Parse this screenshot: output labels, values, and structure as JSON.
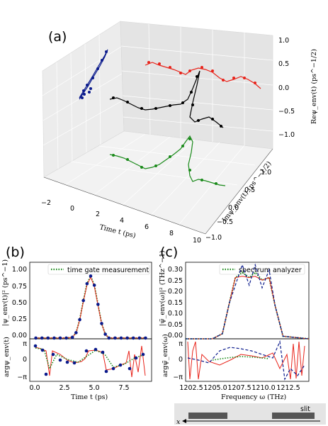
{
  "panels": {
    "a": {
      "label": "(a)",
      "x_axis_label": "Time t (ps)",
      "x_ticks": [
        "−2",
        "0",
        "2",
        "4",
        "6",
        "8",
        "10"
      ],
      "y_axis_label": "Imψ_env(t) (ps^−1/2)",
      "y_ticks": [
        "−1.0",
        "−0.5",
        "0.0",
        "0.5",
        "1.0"
      ],
      "z_axis_label": "Reψ_env(t) (ps^−1/2)",
      "z_ticks": [
        "1.0",
        "0.5",
        "0.0",
        "−0.5",
        "−1.0"
      ],
      "colors": {
        "blue": "#0a1a8c",
        "red": "#e8231a",
        "black": "#000000",
        "green": "#1a8a1a"
      }
    },
    "b": {
      "label": "(b)",
      "legend": "time gate measurement",
      "top_ylabel": "|ψ_env(t)|² (ps^−1)",
      "top_yticks": [
        "0.00",
        "0.25",
        "0.50",
        "0.75",
        "1.00"
      ],
      "bottom_ylabel": "argψ_env(t)",
      "bottom_yticks": [
        "π",
        "0",
        "−π"
      ],
      "xlabel": "Time t (ps)",
      "xticks": [
        "0.0",
        "2.5",
        "5.0",
        "7.5"
      ]
    },
    "c": {
      "label": "(c)",
      "legend": "spectrum analyzer",
      "top_ylabel": "|ψ̃_env(ω)|² (THz^−1)",
      "top_yticks": [
        "0.00",
        "0.05",
        "0.10",
        "0.15",
        "0.20",
        "0.25",
        "0.30"
      ],
      "bottom_ylabel": "argψ̃_env(ω)",
      "bottom_yticks": [
        "π",
        "0",
        "−π"
      ],
      "xlabel": "Frequency ω (THz)",
      "xticks": [
        "1202.5",
        "1205.0",
        "1207.5",
        "1210.0",
        "1212.5"
      ]
    },
    "d": {
      "slit_label": "slit",
      "axis_label": "x"
    }
  },
  "chart_data": [
    {
      "type": "line",
      "panel": "b-top",
      "ylim": [
        0,
        1.0
      ],
      "xlim": [
        -0.5,
        9.5
      ],
      "series": [
        {
          "name": "time gate measurement",
          "x": [
            0,
            0.5,
            1,
            1.5,
            2,
            2.5,
            3,
            3.3,
            3.6,
            3.9,
            4.2,
            4.5,
            4.8,
            5.1,
            5.4,
            5.7,
            6,
            6.5,
            7,
            7.5,
            8,
            8.5,
            9
          ],
          "values": [
            0.01,
            0.01,
            0.01,
            0.01,
            0.01,
            0.01,
            0.02,
            0.08,
            0.25,
            0.5,
            0.72,
            0.82,
            0.7,
            0.45,
            0.2,
            0.06,
            0.01,
            0.01,
            0.01,
            0.01,
            0.01,
            0.01,
            0.01
          ]
        }
      ]
    },
    {
      "type": "line",
      "panel": "c-top",
      "ylim": [
        0,
        0.3
      ],
      "xlim": [
        1201.8,
        1214.2
      ],
      "series": [
        {
          "name": "spectrum analyzer",
          "x": [
            1201.8,
            1204.5,
            1205.5,
            1206.2,
            1206.8,
            1207.5,
            1208.2,
            1208.8,
            1209.5,
            1210.2,
            1210.8,
            1211.6,
            1214.2
          ],
          "values": [
            0.0,
            0.0,
            0.02,
            0.14,
            0.24,
            0.26,
            0.24,
            0.26,
            0.23,
            0.24,
            0.13,
            0.01,
            0.0
          ]
        }
      ]
    }
  ]
}
